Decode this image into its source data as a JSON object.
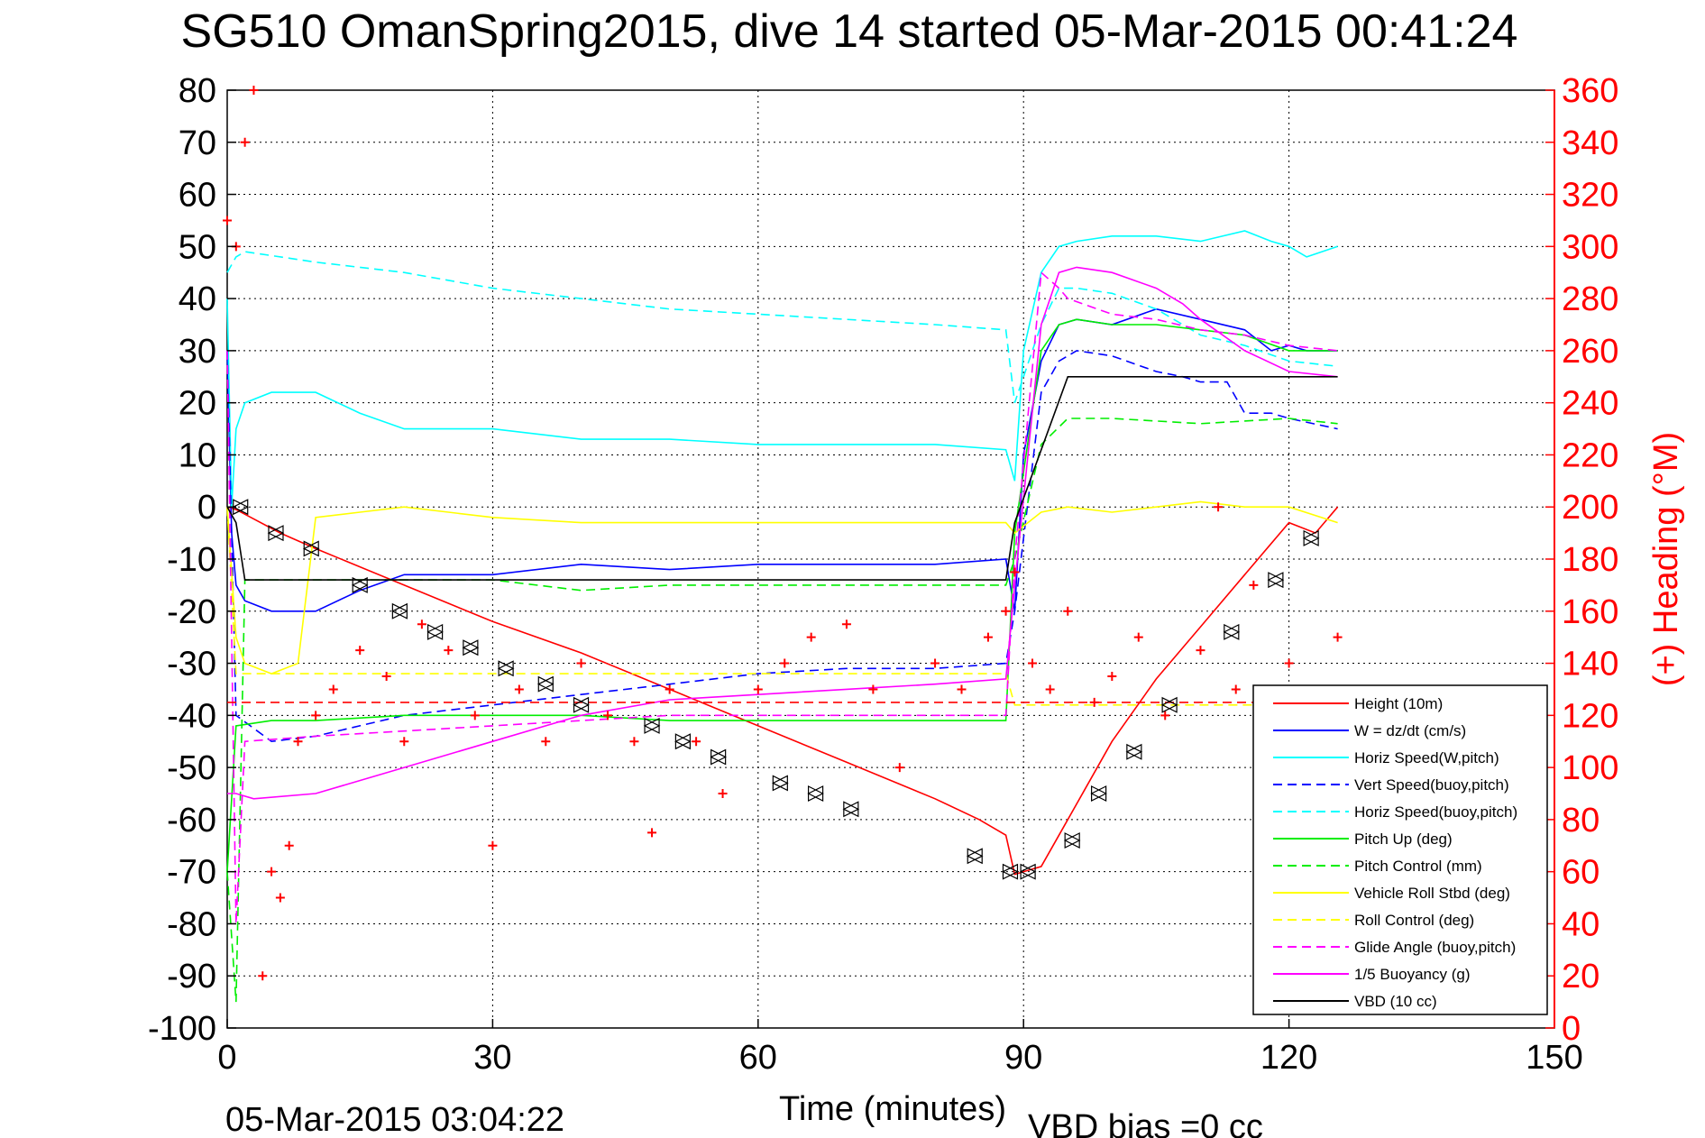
{
  "chart_data": {
    "type": "line",
    "title": "SG510 OmanSpring2015, dive 14 started 05-Mar-2015 00:41:24",
    "xlabel": "Time (minutes)",
    "ylabel": "",
    "ylabel_right": "(+) Heading (°M)",
    "xlim": [
      0,
      150
    ],
    "ylim": [
      -100,
      80
    ],
    "ylim_right": [
      0,
      360
    ],
    "xticks": [
      "0",
      "30",
      "60",
      "90",
      "120",
      "150"
    ],
    "yticks": [
      "80",
      "70",
      "60",
      "50",
      "40",
      "30",
      "20",
      "10",
      "0",
      "-10",
      "-20",
      "-30",
      "-40",
      "-50",
      "-60",
      "-70",
      "-80",
      "-90",
      "-100"
    ],
    "yticks_right": [
      "360",
      "340",
      "320",
      "300",
      "280",
      "260",
      "240",
      "220",
      "200",
      "180",
      "160",
      "140",
      "120",
      "100",
      "80",
      "60",
      "40",
      "20",
      "0"
    ],
    "grid": true,
    "legend_position": "bottom-right",
    "footer_left": "05-Mar-2015 03:04:22",
    "footer_right": "VBD bias =0 cc",
    "colors": {
      "red": "#ff0000",
      "blue": "#0000ff",
      "cyan": "#00ffff",
      "green": "#00ee00",
      "yellow": "#ffff00",
      "magenta": "#ff00ff",
      "black": "#000000"
    },
    "series": [
      {
        "name": "Height (10m)",
        "color": "#ff0000",
        "style": "solid",
        "x": [
          0,
          1,
          6,
          10,
          20,
          30,
          40,
          50,
          60,
          70,
          80,
          85,
          88,
          89,
          92,
          94,
          97,
          100,
          105,
          110,
          115,
          120,
          123,
          125.5
        ],
        "y": [
          0,
          -0.5,
          -5,
          -8,
          -15,
          -22,
          -28,
          -35,
          -42,
          -49,
          -56,
          -60,
          -63,
          -70.5,
          -69,
          -63,
          -54,
          -45,
          -33,
          -23,
          -13,
          -3,
          -5,
          0
        ]
      },
      {
        "name": "W = dz/dt (cm/s)",
        "color": "#0000ff",
        "style": "solid",
        "x": [
          0,
          0.5,
          1,
          2,
          5,
          10,
          15,
          20,
          30,
          40,
          50,
          60,
          70,
          80,
          88,
          89,
          90,
          92,
          94,
          96,
          100,
          105,
          110,
          115,
          118,
          120,
          122,
          125.5
        ],
        "y": [
          30,
          -5,
          -15,
          -18,
          -20,
          -20,
          -16,
          -13,
          -13,
          -11,
          -12,
          -11,
          -11,
          -11,
          -10,
          -20,
          10,
          28,
          35,
          36,
          35,
          38,
          36,
          34,
          30,
          31,
          30,
          30
        ]
      },
      {
        "name": "Horiz Speed(W,pitch)",
        "color": "#00ffff",
        "style": "solid",
        "x": [
          0,
          0.5,
          1,
          2,
          5,
          10,
          15,
          20,
          30,
          40,
          50,
          60,
          70,
          80,
          88,
          89,
          90,
          92,
          94,
          96,
          100,
          105,
          110,
          115,
          118,
          120,
          122,
          125.5
        ],
        "y": [
          40,
          0,
          15,
          20,
          22,
          22,
          18,
          15,
          15,
          13,
          13,
          12,
          12,
          12,
          11,
          5,
          30,
          45,
          50,
          51,
          52,
          52,
          51,
          53,
          51,
          50,
          48,
          50
        ]
      },
      {
        "name": "Vert Speed(buoy,pitch)",
        "color": "#0000ff",
        "style": "dashed",
        "x": [
          0,
          1,
          5,
          10,
          20,
          30,
          40,
          50,
          60,
          70,
          80,
          88,
          89,
          92,
          94,
          96,
          100,
          105,
          108,
          110,
          113,
          115,
          118,
          120,
          125.5
        ],
        "y": [
          30,
          -40,
          -45,
          -44,
          -40,
          -38,
          -36,
          -34,
          -32,
          -31,
          -31,
          -30,
          -20,
          22,
          28,
          30,
          29,
          26,
          25,
          24,
          24,
          18,
          18,
          17,
          15
        ]
      },
      {
        "name": "Horiz Speed(buoy,pitch)",
        "color": "#00ffff",
        "style": "dashed",
        "x": [
          0,
          1,
          2,
          10,
          20,
          30,
          40,
          50,
          60,
          70,
          80,
          88,
          89,
          92,
          94,
          96,
          100,
          105,
          110,
          115,
          120,
          125.5
        ],
        "y": [
          45,
          48,
          49,
          47,
          45,
          42,
          40,
          38,
          37,
          36,
          35,
          34,
          20,
          35,
          42,
          42,
          41,
          38,
          33,
          31,
          28,
          27
        ]
      },
      {
        "name": "Pitch Up (deg)",
        "color": "#00ee00",
        "style": "solid",
        "x": [
          0,
          1,
          5,
          10,
          20,
          30,
          40,
          50,
          60,
          70,
          80,
          88,
          89,
          92,
          94,
          96,
          100,
          105,
          110,
          115,
          120,
          125.5
        ],
        "y": [
          -70,
          -42,
          -41,
          -41,
          -40,
          -40,
          -40,
          -41,
          -41,
          -41,
          -41,
          -41,
          -5,
          30,
          35,
          36,
          35,
          35,
          34,
          33,
          30,
          30
        ]
      },
      {
        "name": "Pitch Control (mm)",
        "color": "#00ee00",
        "style": "dashed",
        "x": [
          0,
          1,
          2,
          5,
          10,
          20,
          30,
          40,
          50,
          60,
          70,
          80,
          88,
          89,
          92,
          95,
          100,
          110,
          120,
          125.5
        ],
        "y": [
          -70,
          -95,
          -14,
          -14,
          -14,
          -14,
          -14,
          -16,
          -15,
          -15,
          -15,
          -15,
          -15,
          -10,
          12,
          17,
          17,
          16,
          17,
          16
        ]
      },
      {
        "name": "Vehicle Roll Stbd (deg)",
        "color": "#ffff00",
        "style": "solid",
        "x": [
          0,
          1,
          2,
          5,
          8,
          10,
          15,
          20,
          30,
          40,
          50,
          60,
          70,
          80,
          88,
          89,
          92,
          95,
          100,
          105,
          110,
          115,
          120,
          125.5
        ],
        "y": [
          0,
          -25,
          -30,
          -32,
          -30,
          -2,
          -1,
          0,
          -2,
          -3,
          -3,
          -3,
          -3,
          -3,
          -3,
          -5,
          -1,
          0,
          -1,
          0,
          1,
          0,
          0,
          -3
        ]
      },
      {
        "name": "Roll Control (deg)",
        "color": "#ffff00",
        "style": "dashed",
        "x": [
          0,
          1,
          2,
          10,
          20,
          30,
          40,
          50,
          60,
          70,
          80,
          88,
          89,
          92,
          95,
          100,
          110,
          120,
          125.5
        ],
        "y": [
          0,
          -32,
          -32,
          -32,
          -32,
          -32,
          -32,
          -32,
          -32,
          -32,
          -32,
          -32,
          -38,
          -38,
          -38,
          -38,
          -38,
          -38,
          -38
        ]
      },
      {
        "name": "Glide Angle (buoy,pitch)",
        "color": "#ff00ff",
        "style": "dashed",
        "x": [
          0,
          1,
          2,
          10,
          20,
          30,
          40,
          50,
          60,
          70,
          80,
          88,
          89,
          92,
          94,
          95,
          100,
          105,
          110,
          115,
          120,
          125.5
        ],
        "y": [
          30,
          -80,
          -45,
          -44,
          -43,
          -42,
          -41,
          -40,
          -40,
          -40,
          -40,
          -40,
          -10,
          45,
          42,
          40,
          37,
          36,
          34,
          33,
          31,
          30
        ]
      },
      {
        "name": "1/5 Buoyancy (g)",
        "color": "#ff00ff",
        "style": "solid",
        "x": [
          0,
          1,
          3,
          10,
          20,
          30,
          40,
          50,
          60,
          70,
          80,
          88,
          89,
          92,
          94,
          96,
          100,
          105,
          108,
          110,
          115,
          120,
          125.5
        ],
        "y": [
          -55,
          -55,
          -56,
          -55,
          -50,
          -45,
          -40,
          -37,
          -36,
          -35,
          -34,
          -33,
          -15,
          35,
          45,
          46,
          45,
          42,
          39,
          36,
          30,
          26,
          25
        ]
      },
      {
        "name": "VBD (10 cc)",
        "color": "#000000",
        "style": "solid",
        "x": [
          0,
          1,
          2,
          10,
          20,
          30,
          40,
          50,
          60,
          70,
          80,
          88,
          89,
          95,
          100,
          110,
          120,
          125.5
        ],
        "y": [
          0,
          -3,
          -14,
          -14,
          -14,
          -14,
          -14,
          -14,
          -14,
          -14,
          -14,
          -14,
          -3,
          25,
          25,
          25,
          25,
          25
        ]
      },
      {
        "name": "",
        "color": "#ff0000",
        "style": "markers-plus",
        "axis": "right",
        "x": [
          0,
          1,
          2,
          3,
          4,
          5,
          6,
          7,
          8,
          10,
          12,
          15,
          18,
          20,
          22,
          25,
          28,
          30,
          33,
          36,
          40,
          43,
          46,
          48,
          50,
          53,
          56,
          60,
          63,
          66,
          70,
          73,
          76,
          80,
          83,
          86,
          88,
          89,
          91,
          93,
          95,
          98,
          100,
          103,
          106,
          110,
          112,
          114,
          116,
          118,
          120,
          123,
          125.5
        ],
        "y": [
          310,
          300,
          340,
          360,
          20,
          60,
          50,
          70,
          110,
          120,
          130,
          145,
          135,
          110,
          155,
          145,
          120,
          70,
          130,
          110,
          140,
          120,
          110,
          75,
          130,
          110,
          90,
          130,
          140,
          150,
          155,
          130,
          100,
          140,
          130,
          150,
          160,
          175,
          140,
          130,
          160,
          125,
          135,
          150,
          120,
          145,
          200,
          130,
          170,
          110,
          140,
          130,
          150
        ]
      },
      {
        "name": "",
        "color": "#ff0000",
        "style": "dashed",
        "axis": "right",
        "x": [
          0,
          125.5
        ],
        "y": [
          125,
          125
        ]
      }
    ],
    "markers_height": {
      "x": [
        1.5,
        5.5,
        9.5,
        15,
        19.5,
        23.5,
        27.5,
        31.5,
        36,
        40,
        48,
        51.5,
        55.5,
        62.5,
        66.5,
        70.5,
        84.5,
        88.5,
        90.5,
        95.5,
        98.5,
        102.5,
        106.5,
        113.5,
        118.5,
        122.5
      ],
      "y": [
        0,
        -5,
        -8,
        -15,
        -20,
        -24,
        -27,
        -31,
        -34,
        -38,
        -42,
        -45,
        -48,
        -53,
        -55,
        -58,
        -67,
        -70,
        -70,
        -64,
        -55,
        -47,
        -38,
        -24,
        -14,
        -6
      ]
    }
  },
  "legend": {
    "items": [
      {
        "label": "Height (10m)",
        "color": "#ff0000",
        "dash": false
      },
      {
        "label": "W = dz/dt (cm/s)",
        "color": "#0000ff",
        "dash": false
      },
      {
        "label": "Horiz Speed(W,pitch)",
        "color": "#00ffff",
        "dash": false
      },
      {
        "label": "Vert Speed(buoy,pitch)",
        "color": "#0000ff",
        "dash": true
      },
      {
        "label": "Horiz Speed(buoy,pitch)",
        "color": "#00ffff",
        "dash": true
      },
      {
        "label": "Pitch Up (deg)",
        "color": "#00ee00",
        "dash": false
      },
      {
        "label": "Pitch Control (mm)",
        "color": "#00ee00",
        "dash": true
      },
      {
        "label": "Vehicle Roll Stbd (deg)",
        "color": "#ffff00",
        "dash": false
      },
      {
        "label": "Roll Control (deg)",
        "color": "#ffff00",
        "dash": true
      },
      {
        "label": "Glide Angle (buoy,pitch)",
        "color": "#ff00ff",
        "dash": true
      },
      {
        "label": "1/5 Buoyancy (g)",
        "color": "#ff00ff",
        "dash": false
      },
      {
        "label": "VBD (10 cc)",
        "color": "#000000",
        "dash": false
      }
    ]
  }
}
